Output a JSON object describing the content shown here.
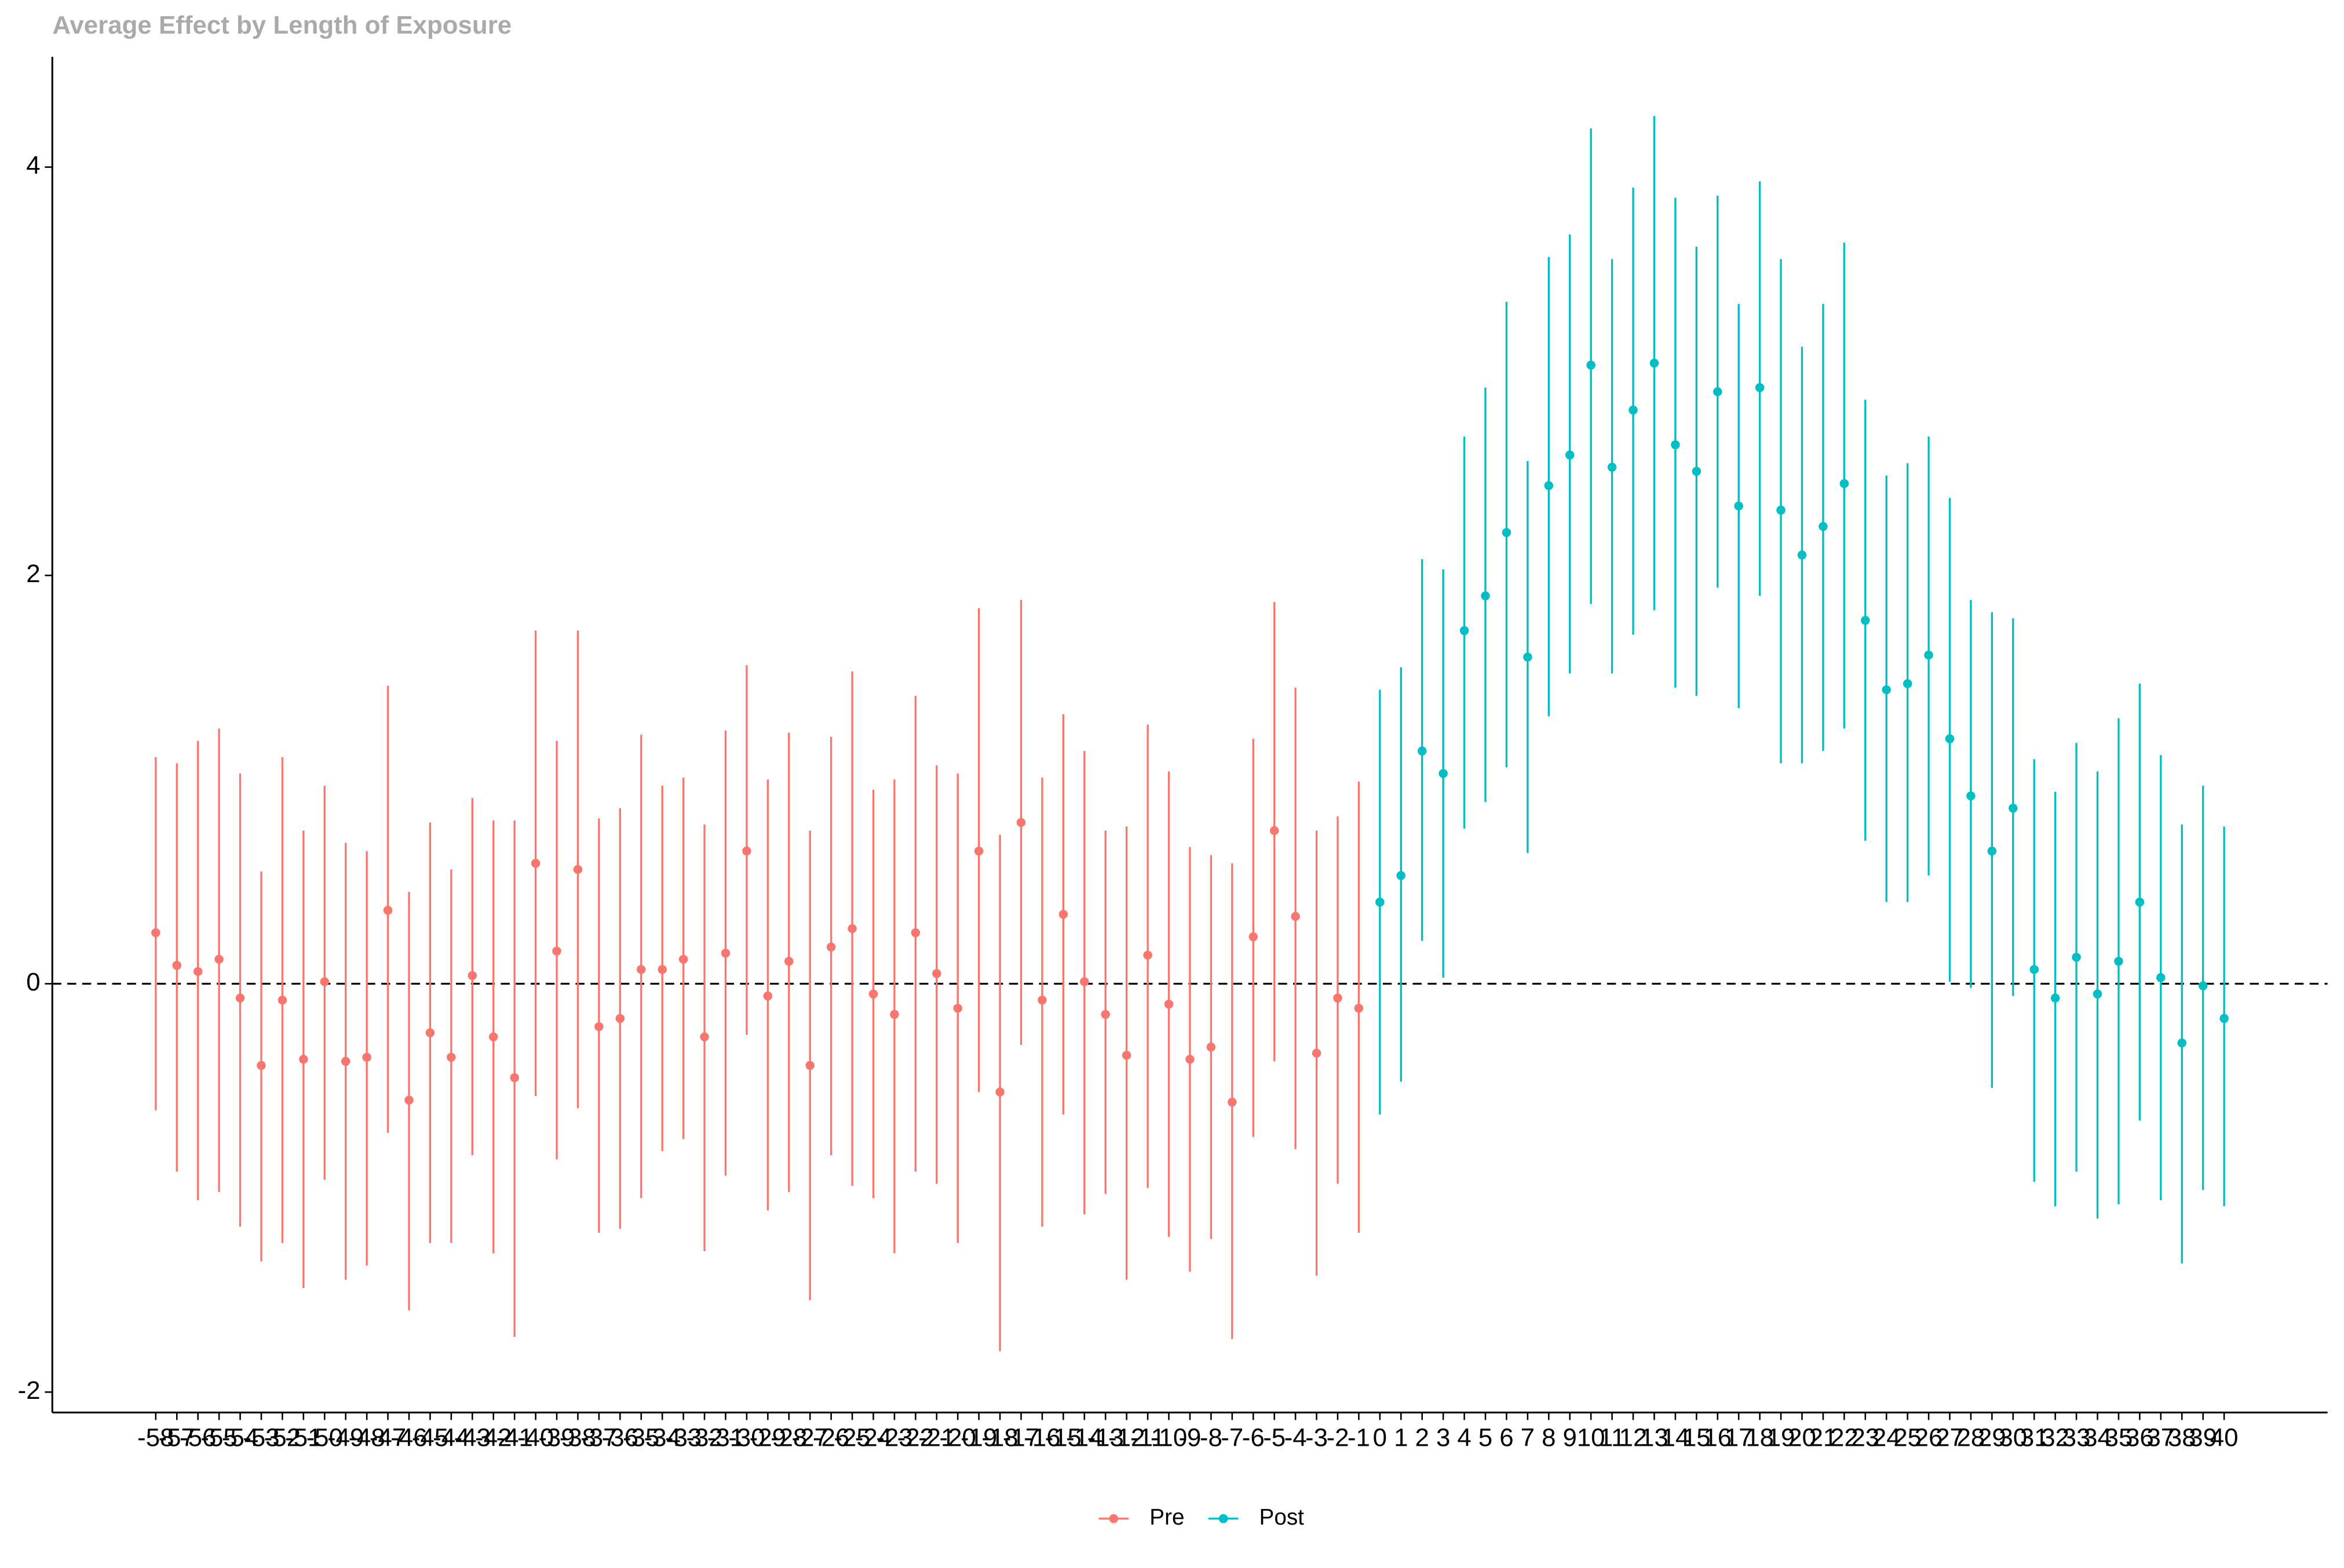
{
  "chart_data": {
    "type": "errorbar",
    "title": "Average Effect by Length of Exposure",
    "xlim": [
      -62.9,
      44.9
    ],
    "ylim": [
      -2.1,
      4.54
    ],
    "yticks": [
      -2,
      0,
      2,
      4
    ],
    "xticks": [
      -58,
      -57,
      -56,
      -55,
      -54,
      -53,
      -52,
      -51,
      -50,
      -49,
      -48,
      -47,
      -46,
      -45,
      -44,
      -43,
      -42,
      -41,
      -40,
      -39,
      -38,
      -37,
      -36,
      -35,
      -34,
      -33,
      -32,
      -31,
      -30,
      -29,
      -28,
      -27,
      -26,
      -25,
      -24,
      -23,
      -22,
      -21,
      -20,
      -19,
      -18,
      -17,
      -16,
      -15,
      -14,
      -13,
      -12,
      -11,
      -10,
      -9,
      -8,
      -7,
      -6,
      -5,
      -4,
      -3,
      -2,
      -1,
      0,
      1,
      2,
      3,
      4,
      5,
      6,
      7,
      8,
      9,
      10,
      11,
      12,
      13,
      14,
      15,
      16,
      17,
      18,
      19,
      20,
      21,
      22,
      23,
      24,
      25,
      26,
      27,
      28,
      29,
      30,
      31,
      32,
      33,
      34,
      35,
      36,
      37,
      38,
      39,
      40
    ],
    "reference_line": 0,
    "legend_position": "bottom",
    "series": [
      {
        "name": "Pre",
        "color": "#F8766D",
        "x": [
          -58,
          -57,
          -56,
          -55,
          -54,
          -53,
          -52,
          -51,
          -50,
          -49,
          -48,
          -47,
          -46,
          -45,
          -44,
          -43,
          -42,
          -41,
          -40,
          -39,
          -38,
          -37,
          -36,
          -35,
          -34,
          -33,
          -32,
          -31,
          -30,
          -29,
          -28,
          -27,
          -26,
          -25,
          -24,
          -23,
          -22,
          -21,
          -20,
          -19,
          -18,
          -17,
          -16,
          -15,
          -14,
          -13,
          -12,
          -11,
          -10,
          -9,
          -8,
          -7,
          -6,
          -5,
          -4,
          -3,
          -2,
          -1
        ],
        "values": [
          0.25,
          0.09,
          0.06,
          0.12,
          -0.07,
          -0.4,
          -0.08,
          -0.37,
          0.01,
          -0.38,
          -0.36,
          0.36,
          -0.57,
          -0.24,
          -0.36,
          0.04,
          -0.26,
          -0.46,
          0.59,
          0.16,
          0.56,
          -0.21,
          -0.17,
          0.07,
          0.07,
          0.12,
          -0.26,
          0.15,
          0.65,
          -0.06,
          0.11,
          -0.4,
          0.18,
          0.27,
          -0.05,
          -0.15,
          0.25,
          0.05,
          -0.12,
          0.65,
          -0.53,
          0.79,
          -0.08,
          0.34,
          0.01,
          -0.15,
          -0.35,
          0.14,
          -0.1,
          -0.37,
          -0.31,
          -0.58,
          0.23,
          0.75,
          0.33,
          -0.34,
          -0.07,
          -0.12
        ],
        "upper": [
          1.11,
          1.08,
          1.19,
          1.25,
          1.03,
          0.55,
          1.11,
          0.75,
          0.97,
          0.69,
          0.65,
          1.46,
          0.45,
          0.79,
          0.56,
          0.91,
          0.8,
          0.8,
          1.73,
          1.19,
          1.73,
          0.81,
          0.86,
          1.22,
          0.97,
          1.01,
          0.78,
          1.24,
          1.56,
          1.0,
          1.23,
          0.75,
          1.21,
          1.53,
          0.95,
          1.0,
          1.41,
          1.07,
          1.03,
          1.84,
          0.73,
          1.88,
          1.01,
          1.32,
          1.14,
          0.75,
          0.77,
          1.27,
          1.04,
          0.67,
          0.63,
          0.59,
          1.2,
          1.87,
          1.45,
          0.75,
          0.82,
          0.99
        ],
        "lower": [
          -0.62,
          -0.92,
          -1.06,
          -1.02,
          -1.19,
          -1.36,
          -1.27,
          -1.49,
          -0.96,
          -1.45,
          -1.38,
          -0.73,
          -1.6,
          -1.27,
          -1.27,
          -0.84,
          -1.32,
          -1.73,
          -0.55,
          -0.86,
          -0.61,
          -1.22,
          -1.2,
          -1.05,
          -0.82,
          -0.76,
          -1.31,
          -0.94,
          -0.25,
          -1.11,
          -1.02,
          -1.55,
          -0.84,
          -0.99,
          -1.05,
          -1.32,
          -0.92,
          -0.98,
          -1.27,
          -0.53,
          -1.8,
          -0.3,
          -1.19,
          -0.64,
          -1.13,
          -1.03,
          -1.45,
          -1.0,
          -1.24,
          -1.41,
          -1.25,
          -1.74,
          -0.75,
          -0.38,
          -0.81,
          -1.43,
          -0.98,
          -1.22
        ]
      },
      {
        "name": "Post",
        "color": "#00BFC4",
        "x": [
          0,
          1,
          2,
          3,
          4,
          5,
          6,
          7,
          8,
          9,
          10,
          11,
          12,
          13,
          14,
          15,
          16,
          17,
          18,
          19,
          20,
          21,
          22,
          23,
          24,
          25,
          26,
          27,
          28,
          29,
          30,
          31,
          32,
          33,
          34,
          35,
          36,
          37,
          38,
          39,
          40
        ],
        "values": [
          0.4,
          0.53,
          1.14,
          1.03,
          1.73,
          1.9,
          2.21,
          1.6,
          2.44,
          2.59,
          3.03,
          2.53,
          2.81,
          3.04,
          2.64,
          2.51,
          2.9,
          2.34,
          2.92,
          2.32,
          2.1,
          2.24,
          2.45,
          1.78,
          1.44,
          1.47,
          1.61,
          1.2,
          0.92,
          0.65,
          0.86,
          0.07,
          -0.07,
          0.13,
          -0.05,
          0.11,
          0.4,
          0.03,
          -0.29,
          -0.01,
          -0.17
        ],
        "upper": [
          1.44,
          1.55,
          2.08,
          2.03,
          2.68,
          2.92,
          3.34,
          2.56,
          3.56,
          3.67,
          4.19,
          3.55,
          3.9,
          4.25,
          3.85,
          3.61,
          3.86,
          3.33,
          3.93,
          3.55,
          3.12,
          3.33,
          3.63,
          2.86,
          2.49,
          2.55,
          2.68,
          2.38,
          1.88,
          1.82,
          1.79,
          1.1,
          0.94,
          1.18,
          1.04,
          1.3,
          1.47,
          1.12,
          0.78,
          0.97,
          0.77
        ],
        "lower": [
          -0.64,
          -0.48,
          0.21,
          0.03,
          0.76,
          0.89,
          1.06,
          0.64,
          1.31,
          1.52,
          1.86,
          1.52,
          1.71,
          1.83,
          1.45,
          1.41,
          1.94,
          1.35,
          1.9,
          1.08,
          1.08,
          1.14,
          1.25,
          0.7,
          0.4,
          0.4,
          0.53,
          0.01,
          -0.02,
          -0.51,
          -0.06,
          -0.97,
          -1.09,
          -0.92,
          -1.15,
          -1.08,
          -0.67,
          -1.06,
          -1.37,
          -1.01,
          -1.09
        ]
      }
    ]
  }
}
